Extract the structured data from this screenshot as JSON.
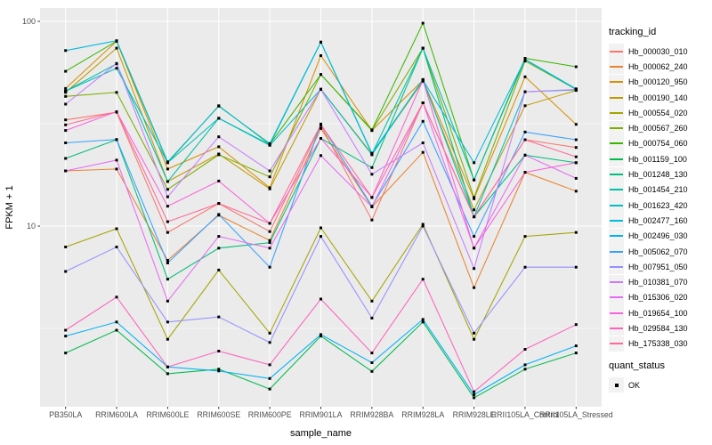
{
  "chart_data": {
    "type": "line",
    "title": "",
    "xlabel": "sample_name",
    "ylabel": "FPKM + 1",
    "y_scale": "log10",
    "ylim": [
      1.3,
      116
    ],
    "y_ticks": [
      {
        "value": 10,
        "label": "10"
      },
      {
        "value": 100,
        "label": "100"
      }
    ],
    "y_minor_ticks": [
      3.162,
      31.62
    ],
    "grid": "on",
    "legend_position": "right",
    "point_shape": "filled-square",
    "categories": [
      "PB350LA",
      "RRIM600LA",
      "RRIM600LE",
      "RRIM600SE",
      "RRIM600PE",
      "RRIM901LA",
      "RRIM928BA",
      "RRIM928LA",
      "RRIM928LE",
      "RRII105LA_Control",
      "RRII105LA_Stressed"
    ],
    "series": [
      {
        "name": "Hb_000030_010",
        "color": "#F8766D",
        "values": [
          33,
          36,
          9.3,
          12.9,
          9.4,
          31,
          10.7,
          40,
          11.1,
          26.4,
          24.2
        ]
      },
      {
        "name": "Hb_000062_240",
        "color": "#EA8331",
        "values": [
          18.6,
          19.0,
          6.8,
          11.3,
          8.5,
          30.0,
          12.4,
          22.9,
          5.0,
          18.3,
          14.8
        ]
      },
      {
        "name": "Hb_000120_950",
        "color": "#D89000",
        "values": [
          47,
          80,
          19.0,
          24.4,
          15.4,
          68,
          29.3,
          51.6,
          13.6,
          53.6,
          31.4
        ]
      },
      {
        "name": "Hb_000190_140",
        "color": "#C09B00",
        "values": [
          45,
          74,
          16.5,
          22.5,
          15.2,
          46.6,
          22.5,
          51.0,
          12.0,
          38.7,
          46.0
        ]
      },
      {
        "name": "Hb_000554_020",
        "color": "#A3A500",
        "values": [
          7.9,
          9.7,
          2.8,
          6.1,
          3.0,
          9.8,
          4.3,
          10.2,
          2.8,
          8.9,
          9.3
        ]
      },
      {
        "name": "Hb_000567_260",
        "color": "#7CAE00",
        "values": [
          43,
          45,
          15.1,
          22.3,
          17.4,
          55,
          29.3,
          74,
          13.8,
          64,
          46.5
        ]
      },
      {
        "name": "Hb_000754_060",
        "color": "#39B600",
        "values": [
          57,
          80,
          20.4,
          38.7,
          25.1,
          55,
          29.5,
          98,
          16.8,
          66,
          60
        ]
      },
      {
        "name": "Hb_001159_100",
        "color": "#00BB4E",
        "values": [
          2.4,
          3.1,
          1.9,
          2.0,
          1.6,
          2.9,
          1.95,
          3.4,
          1.45,
          2.0,
          2.4
        ]
      },
      {
        "name": "Hb_001248_130",
        "color": "#00BF7D",
        "values": [
          21.4,
          26.4,
          5.5,
          7.8,
          8.3,
          26.8,
          19.3,
          74,
          11.1,
          22.2,
          20.4
        ]
      },
      {
        "name": "Hb_001454_210",
        "color": "#00C1A3",
        "values": [
          45.6,
          62,
          16.5,
          33.6,
          25.0,
          79,
          22.5,
          74,
          16.8,
          65,
          46.5
        ]
      },
      {
        "name": "Hb_001623_420",
        "color": "#00BFC4",
        "values": [
          45.6,
          59,
          20.4,
          33.6,
          24.8,
          46.6,
          22.3,
          52,
          11.1,
          45.3,
          46.2
        ]
      },
      {
        "name": "Hb_002477_160",
        "color": "#00BAE0",
        "values": [
          72,
          80.5,
          20.6,
          38.5,
          25.3,
          79.3,
          22.7,
          51.6,
          20.4,
          65.3,
          46.8
        ]
      },
      {
        "name": "Hb_002496_030",
        "color": "#00B0F6",
        "values": [
          2.9,
          3.4,
          2.05,
          1.96,
          1.8,
          2.95,
          2.15,
          3.5,
          1.5,
          2.1,
          2.6
        ]
      },
      {
        "name": "Hb_005062_070",
        "color": "#35A2FF",
        "values": [
          25.5,
          26.5,
          6.6,
          11.4,
          6.3,
          31.5,
          12.5,
          32.5,
          8.9,
          28.8,
          26.4
        ]
      },
      {
        "name": "Hb_007951_050",
        "color": "#9590FF",
        "values": [
          6.0,
          7.9,
          3.4,
          3.6,
          2.7,
          8.9,
          3.55,
          10.0,
          3.0,
          6.3,
          6.3
        ]
      },
      {
        "name": "Hb_010381_070",
        "color": "#C77CFF",
        "values": [
          39.4,
          62.3,
          13.9,
          27.3,
          18.6,
          46.6,
          17.9,
          25.5,
          6.2,
          45.3,
          46.5
        ]
      },
      {
        "name": "Hb_015306_020",
        "color": "#E76BF3",
        "values": [
          18.6,
          21,
          4.3,
          8.9,
          7.8,
          22.1,
          12.4,
          40,
          7.8,
          22.2,
          17.1
        ]
      },
      {
        "name": "Hb_019654_100",
        "color": "#FA62DB",
        "values": [
          29.3,
          36.2,
          12.5,
          16.6,
          10.3,
          26.8,
          13.8,
          51.6,
          7.8,
          18.3,
          20.4
        ]
      },
      {
        "name": "Hb_029584_130",
        "color": "#FF62BC",
        "values": [
          3.1,
          4.5,
          2.05,
          2.45,
          2.1,
          4.4,
          2.4,
          5.5,
          1.55,
          2.5,
          3.3
        ]
      },
      {
        "name": "Hb_175338_030",
        "color": "#FF6A98",
        "values": [
          31.2,
          36.2,
          10.5,
          12.9,
          10.3,
          31.3,
          13.8,
          40,
          11.1,
          26.4,
          21.8
        ]
      }
    ],
    "colors": {
      "panel_bg": "#EBEBEB",
      "grid": "#FFFFFF",
      "tick_label": "#4D4D4D",
      "tick_mark": "#333333",
      "axis_title": "#000000",
      "point": "#000000",
      "legend_key_bg": "#F2F2F2"
    }
  },
  "legend": {
    "tracking_title": "tracking_id",
    "quant_title": "quant_status",
    "quant_items": [
      {
        "label": "OK",
        "marker": "black-square"
      }
    ]
  }
}
